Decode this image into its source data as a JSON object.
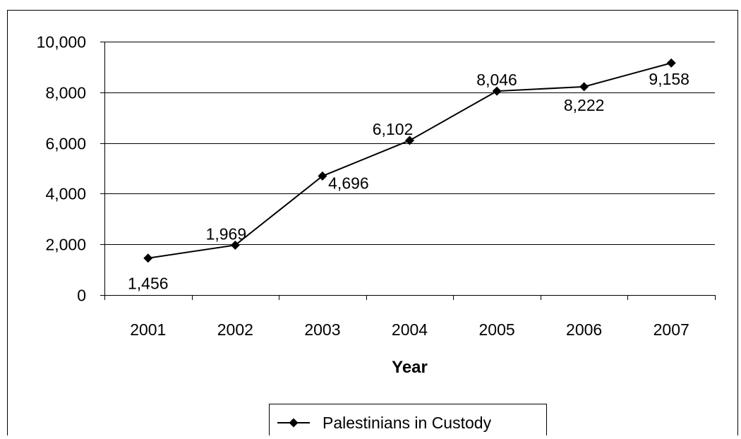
{
  "chart_data": {
    "type": "line",
    "title": "",
    "xlabel": "Year",
    "ylabel": "",
    "categories": [
      "2001",
      "2002",
      "2003",
      "2004",
      "2005",
      "2006",
      "2007"
    ],
    "series": [
      {
        "name": "Palestinians in Custody",
        "values": [
          1456,
          1969,
          4696,
          6102,
          8046,
          8222,
          9158
        ],
        "data_labels": [
          "1,456",
          "1,969",
          "4,696",
          "6,102",
          "8,046",
          "8,222",
          "9,158"
        ],
        "color": "#000000",
        "marker": "diamond"
      }
    ],
    "ylim": [
      0,
      10000
    ],
    "yticks": [
      0,
      2000,
      4000,
      6000,
      8000,
      10000
    ],
    "ytick_labels": [
      "0",
      "2,000",
      "4,000",
      "6,000",
      "8,000",
      "10,000"
    ],
    "grid": true,
    "legend": "bottom"
  }
}
